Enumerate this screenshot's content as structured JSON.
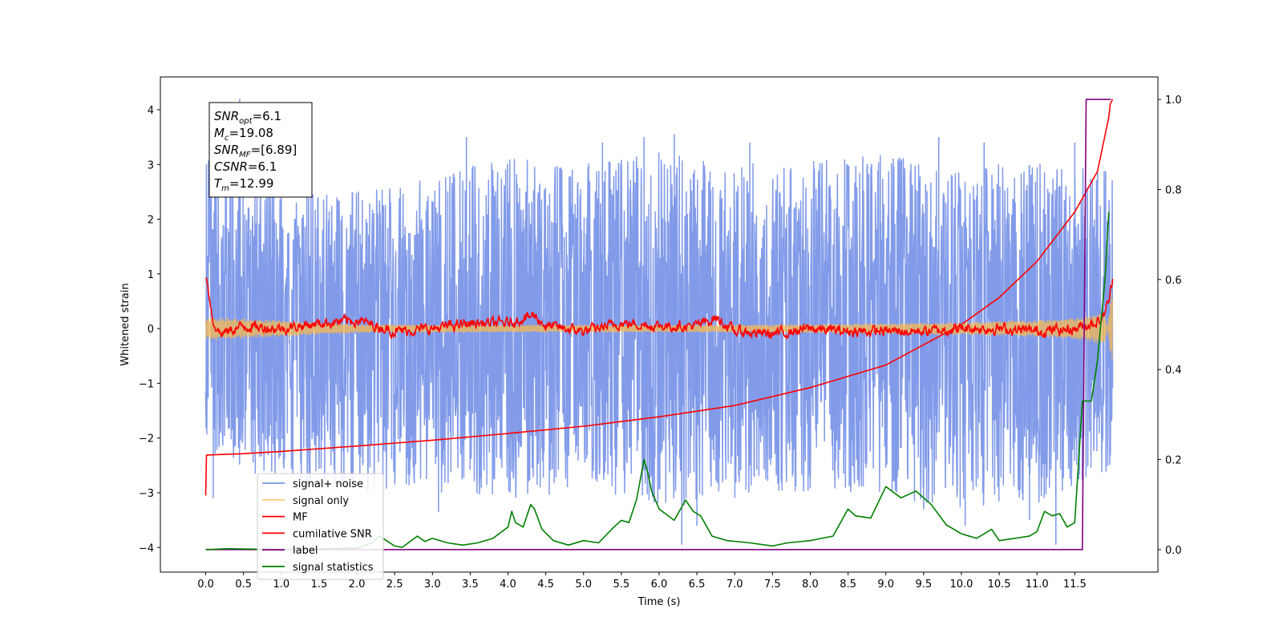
{
  "chart_data": {
    "type": "line",
    "title": "",
    "xlabel": "Time (s)",
    "ylabel": "Whitened strain",
    "y2label": "",
    "xlim": [
      -0.6,
      12.6
    ],
    "ylim": [
      -4.45,
      4.6
    ],
    "y2lim": [
      -0.05,
      1.05
    ],
    "x_ticks": [
      0.0,
      0.5,
      1.0,
      1.5,
      2.0,
      2.5,
      3.0,
      3.5,
      4.0,
      4.5,
      5.0,
      5.5,
      6.0,
      6.5,
      7.0,
      7.5,
      8.0,
      8.5,
      9.0,
      9.5,
      10.0,
      10.5,
      11.0,
      11.5
    ],
    "x_tick_labels": [
      "0.0",
      "0.5",
      "1.0",
      "1.5",
      "2.0",
      "2.5",
      "3.0",
      "3.5",
      "4.0",
      "4.5",
      "5.0",
      "5.5",
      "6.0",
      "6.5",
      "7.0",
      "7.5",
      "8.0",
      "8.5",
      "9.0",
      "9.5",
      "10.0",
      "10.5",
      "11.0",
      "11.5"
    ],
    "y_ticks": [
      -4,
      -3,
      -2,
      -1,
      0,
      1,
      2,
      3,
      4
    ],
    "y_tick_labels": [
      "−4",
      "−3",
      "−2",
      "−1",
      "0",
      "1",
      "2",
      "3",
      "4"
    ],
    "y2_ticks": [
      0.0,
      0.2,
      0.4,
      0.6,
      0.8,
      1.0
    ],
    "y2_tick_labels": [
      "0.0",
      "0.2",
      "0.4",
      "0.6",
      "0.8",
      "1.0"
    ],
    "grid": false,
    "legend_position": "lower-left",
    "annotation": {
      "lines": [
        {
          "base": "SNR",
          "sub": "opt",
          "value": "=6.1"
        },
        {
          "base": "M",
          "sub": "c",
          "value": "=19.08"
        },
        {
          "base": "SNR",
          "sub": "MF",
          "value": "=[6.89]"
        },
        {
          "base": "CSNR",
          "sub": "",
          "value": "=6.1"
        },
        {
          "base": "T",
          "sub": "m",
          "value": "=12.99"
        }
      ]
    },
    "series": [
      {
        "name": "signal+ noise",
        "axis": "left",
        "color": "#7b96e8",
        "style": "noise",
        "x_range": [
          0.0,
          12.0
        ],
        "envelope_upper": [
          [
            0.0,
            3.3
          ],
          [
            1.0,
            2.5
          ],
          [
            2.0,
            2.5
          ],
          [
            3.0,
            2.8
          ],
          [
            4.0,
            3.2
          ],
          [
            5.0,
            3.0
          ],
          [
            6.0,
            3.3
          ],
          [
            7.0,
            3.0
          ],
          [
            8.0,
            3.1
          ],
          [
            9.0,
            3.2
          ],
          [
            10.0,
            3.0
          ],
          [
            11.0,
            3.1
          ],
          [
            12.0,
            2.9
          ]
        ],
        "envelope_lower": [
          [
            0.0,
            -2.4
          ],
          [
            1.0,
            -2.9
          ],
          [
            2.0,
            -3.0
          ],
          [
            3.0,
            -3.0
          ],
          [
            4.0,
            -3.1
          ],
          [
            5.0,
            -3.0
          ],
          [
            6.0,
            -3.3
          ],
          [
            7.0,
            -3.1
          ],
          [
            8.0,
            -3.0
          ],
          [
            9.0,
            -3.1
          ],
          [
            10.0,
            -3.3
          ],
          [
            11.0,
            -3.2
          ],
          [
            12.0,
            -2.6
          ]
        ],
        "spikes": [
          [
            0.45,
            4.2
          ],
          [
            1.0,
            3.0
          ],
          [
            3.45,
            3.5
          ],
          [
            5.25,
            3.4
          ],
          [
            5.8,
            3.5
          ],
          [
            6.2,
            3.55
          ],
          [
            7.2,
            3.4
          ],
          [
            9.7,
            3.5
          ],
          [
            10.3,
            3.4
          ],
          [
            11.5,
            3.4
          ],
          [
            0.1,
            -3.1
          ],
          [
            3.08,
            -3.35
          ],
          [
            6.3,
            -3.95
          ],
          [
            6.5,
            -3.6
          ],
          [
            9.5,
            -3.3
          ],
          [
            10.05,
            -3.6
          ],
          [
            10.9,
            -3.5
          ],
          [
            11.25,
            -3.95
          ]
        ]
      },
      {
        "name": "signal only",
        "axis": "left",
        "color": "#f5b952",
        "style": "chirp",
        "x": [
          0.0,
          2.0,
          4.0,
          6.0,
          8.0,
          9.0,
          10.0,
          11.0,
          11.5,
          11.9,
          12.0
        ],
        "amplitude": [
          0.22,
          0.08,
          0.07,
          0.07,
          0.08,
          0.1,
          0.12,
          0.16,
          0.2,
          0.3,
          -0.8
        ]
      },
      {
        "name": "MF",
        "axis": "left",
        "color": "#ff0000",
        "style": "mf",
        "x": [
          0.0,
          0.05,
          0.1,
          0.2,
          0.5,
          1.0,
          1.5,
          2.0,
          2.5,
          3.0,
          3.5,
          4.0,
          4.35,
          4.5,
          5.0,
          5.5,
          6.0,
          6.5,
          6.75,
          7.0,
          7.5,
          8.0,
          8.5,
          9.0,
          9.5,
          10.0,
          10.5,
          11.0,
          11.5,
          11.85,
          11.95,
          12.0
        ],
        "y": [
          1.0,
          0.6,
          0.1,
          -0.1,
          0.05,
          0.0,
          0.1,
          0.15,
          -0.05,
          0.0,
          0.1,
          0.1,
          0.25,
          0.05,
          -0.05,
          0.1,
          0.05,
          0.05,
          0.2,
          -0.05,
          -0.1,
          0.0,
          -0.05,
          -0.05,
          -0.05,
          0.0,
          0.0,
          -0.05,
          0.0,
          0.15,
          0.5,
          0.9
        ]
      },
      {
        "name": "cumilative SNR",
        "axis": "right",
        "color": "#ff0000",
        "style": "line",
        "x": [
          0.0,
          0.01,
          0.5,
          1.0,
          2.0,
          3.0,
          4.0,
          5.0,
          6.0,
          7.0,
          8.0,
          9.0,
          9.5,
          10.0,
          10.5,
          11.0,
          11.5,
          11.8,
          11.95,
          11.97,
          12.0
        ],
        "y": [
          0.12,
          0.21,
          0.213,
          0.218,
          0.23,
          0.243,
          0.258,
          0.274,
          0.295,
          0.32,
          0.36,
          0.41,
          0.455,
          0.5,
          0.56,
          0.64,
          0.75,
          0.84,
          0.96,
          0.99,
          1.0
        ]
      },
      {
        "name": "label",
        "axis": "right",
        "color": "#800080",
        "style": "line",
        "x": [
          0.0,
          11.6,
          11.65,
          11.98
        ],
        "y": [
          0.0,
          0.0,
          1.0,
          1.0
        ]
      },
      {
        "name": "signal statistics",
        "axis": "right",
        "color": "#008000",
        "style": "line",
        "x": [
          0.0,
          0.3,
          1.0,
          2.0,
          2.2,
          2.3,
          2.5,
          2.6,
          2.8,
          2.9,
          3.0,
          3.2,
          3.4,
          3.6,
          3.8,
          4.0,
          4.05,
          4.1,
          4.2,
          4.3,
          4.35,
          4.45,
          4.6,
          4.8,
          5.0,
          5.2,
          5.4,
          5.5,
          5.6,
          5.7,
          5.8,
          5.85,
          5.9,
          6.0,
          6.2,
          6.35,
          6.45,
          6.55,
          6.7,
          6.9,
          7.2,
          7.5,
          7.7,
          8.0,
          8.3,
          8.5,
          8.6,
          8.8,
          9.0,
          9.2,
          9.4,
          9.6,
          9.8,
          10.0,
          10.2,
          10.4,
          10.5,
          10.7,
          10.9,
          11.0,
          11.1,
          11.2,
          11.3,
          11.4,
          11.5,
          11.6,
          11.65,
          11.72,
          11.8,
          11.9,
          11.95
        ],
        "y": [
          0.0,
          0.002,
          0.0,
          0.003,
          0.015,
          0.03,
          0.008,
          0.005,
          0.03,
          0.018,
          0.025,
          0.015,
          0.01,
          0.015,
          0.025,
          0.05,
          0.085,
          0.06,
          0.05,
          0.1,
          0.09,
          0.045,
          0.02,
          0.01,
          0.02,
          0.015,
          0.05,
          0.065,
          0.06,
          0.11,
          0.2,
          0.17,
          0.13,
          0.09,
          0.065,
          0.11,
          0.085,
          0.075,
          0.03,
          0.02,
          0.015,
          0.008,
          0.015,
          0.02,
          0.03,
          0.09,
          0.075,
          0.07,
          0.14,
          0.115,
          0.13,
          0.1,
          0.055,
          0.035,
          0.025,
          0.045,
          0.02,
          0.025,
          0.03,
          0.04,
          0.085,
          0.075,
          0.08,
          0.05,
          0.06,
          0.33,
          0.33,
          0.33,
          0.42,
          0.6,
          0.75
        ]
      }
    ]
  }
}
